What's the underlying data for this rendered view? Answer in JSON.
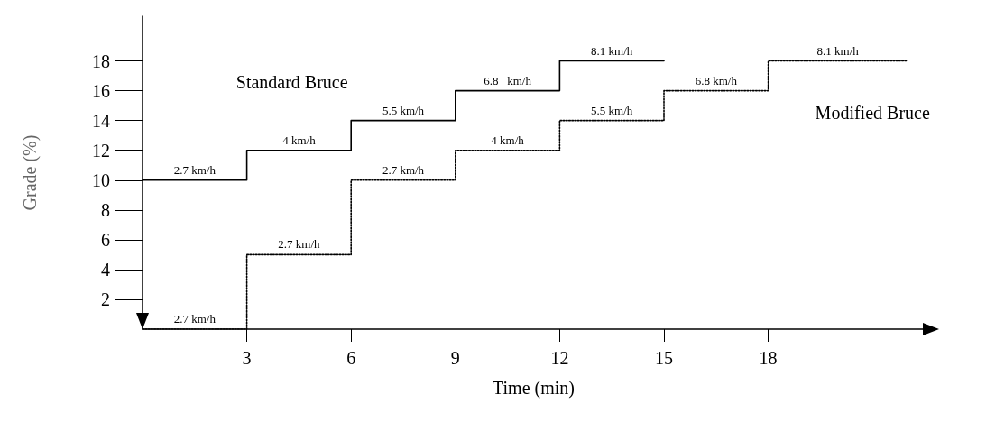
{
  "chart_data": {
    "type": "step",
    "xlabel": "Time (min)",
    "ylabel": "Grade (%)",
    "xlim": [
      0,
      22.5
    ],
    "xticks": [
      3,
      6,
      9,
      12,
      15,
      18
    ],
    "ylim": [
      0,
      21
    ],
    "yticks": [
      2,
      4,
      6,
      8,
      10,
      12,
      14,
      16,
      18
    ],
    "grid": false,
    "legend": false,
    "marker": "none",
    "series": [
      {
        "name": "Standard Bruce",
        "color": "#000000",
        "line_style": "solid",
        "x": [
          0,
          3,
          6,
          9,
          12,
          15
        ],
        "values": [
          10,
          12,
          14,
          16,
          18,
          18
        ]
      },
      {
        "name": "Modified Bruce",
        "color": "#000000",
        "line_style": "dotted",
        "x": [
          0,
          3,
          6,
          9,
          12,
          15,
          18,
          22
        ],
        "values": [
          0,
          5,
          10,
          12,
          14,
          16,
          18,
          18
        ]
      }
    ],
    "annotations": [
      {
        "text": "2.7 km/h",
        "x": 1.5,
        "y": 10
      },
      {
        "text": "4 km/h",
        "x": 4.5,
        "y": 12
      },
      {
        "text": "5.5 km/h",
        "x": 7.5,
        "y": 14
      },
      {
        "text": "6.8   km/h",
        "x": 10.5,
        "y": 16
      },
      {
        "text": "8.1 km/h",
        "x": 13.5,
        "y": 18
      },
      {
        "text": "2.7 km/h",
        "x": 1.5,
        "y": 0
      },
      {
        "text": "2.7 km/h",
        "x": 4.5,
        "y": 5
      },
      {
        "text": "2.7 km/h",
        "x": 7.5,
        "y": 10
      },
      {
        "text": "4 km/h",
        "x": 10.5,
        "y": 12
      },
      {
        "text": "5.5 km/h",
        "x": 13.5,
        "y": 14
      },
      {
        "text": "6.8 km/h",
        "x": 16.5,
        "y": 16
      },
      {
        "text": "8.1 km/h",
        "x": 20,
        "y": 18
      }
    ]
  }
}
